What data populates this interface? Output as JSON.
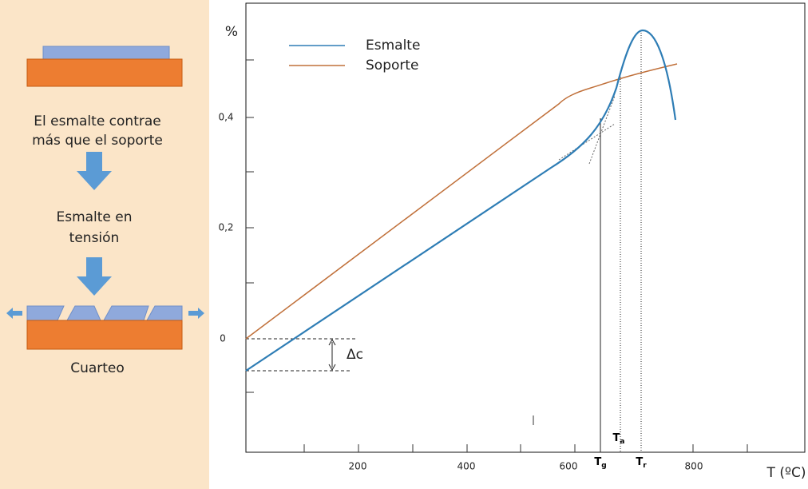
{
  "left_panel": {
    "caption_1": [
      "El esmalte contrae",
      "más que el soporte"
    ],
    "caption_2": [
      "Esmalte en",
      "tensión"
    ],
    "caption_3": "Cuarteo"
  },
  "plot": {
    "y_unit": "%",
    "y_tick_labels": [
      "0,4",
      "0,2",
      "0"
    ],
    "x_tick_labels": [
      "200",
      "400",
      "600",
      "800"
    ],
    "x_axis_label": "T (ºC)",
    "legend": [
      "Esmalte",
      "Soporte"
    ],
    "delta_label": "Δc",
    "markers": [
      {
        "symbol": "T",
        "subscript": "g"
      },
      {
        "symbol": "T",
        "subscript": "a"
      },
      {
        "symbol": "T",
        "subscript": "r"
      }
    ]
  }
}
